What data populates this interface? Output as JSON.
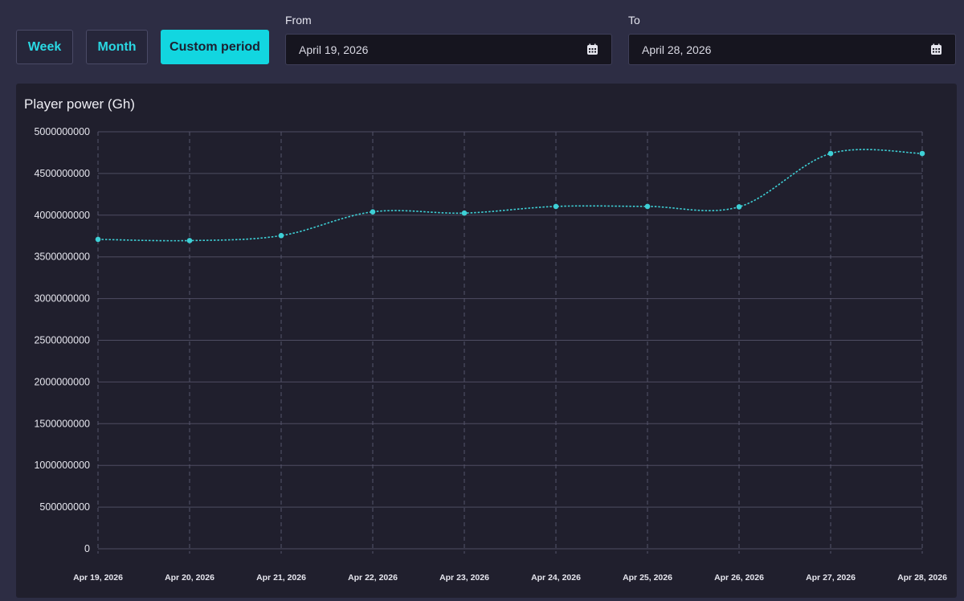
{
  "controls": {
    "week_label": "Week",
    "month_label": "Month",
    "custom_label": "Custom period",
    "active": "custom",
    "from_label": "From",
    "from_value": "April 19, 2026",
    "to_label": "To",
    "to_value": "April 28, 2026",
    "calendar_icon": "calendar-icon"
  },
  "colors": {
    "accent": "#12d6e0",
    "line": "#3ed0d6",
    "background": "#2d2d44",
    "card": "#201f2d"
  },
  "chart_data": {
    "type": "line",
    "title": "Player power (Gh)",
    "xlabel": "",
    "ylabel": "",
    "categories": [
      "Apr 19, 2026",
      "Apr 20, 2026",
      "Apr 21, 2026",
      "Apr 22, 2026",
      "Apr 23, 2026",
      "Apr 24, 2026",
      "Apr 25, 2026",
      "Apr 26, 2026",
      "Apr 27, 2026",
      "Apr 28, 2026"
    ],
    "series": [
      {
        "values": [
          3710000000,
          3695000000,
          3755000000,
          4040000000,
          4025000000,
          4105000000,
          4105000000,
          4100000000,
          4740000000,
          4740000000
        ],
        "color": "#3ed0d6",
        "line_style": "dotted"
      }
    ],
    "ylim": [
      0,
      5000000000
    ],
    "yticks": [
      "0",
      "500000000",
      "1000000000",
      "1500000000",
      "2000000000",
      "2500000000",
      "3000000000",
      "3500000000",
      "4000000000",
      "4500000000",
      "5000000000"
    ],
    "grid": {
      "horizontal": "solid",
      "vertical": "dashed"
    },
    "legend": "none"
  }
}
